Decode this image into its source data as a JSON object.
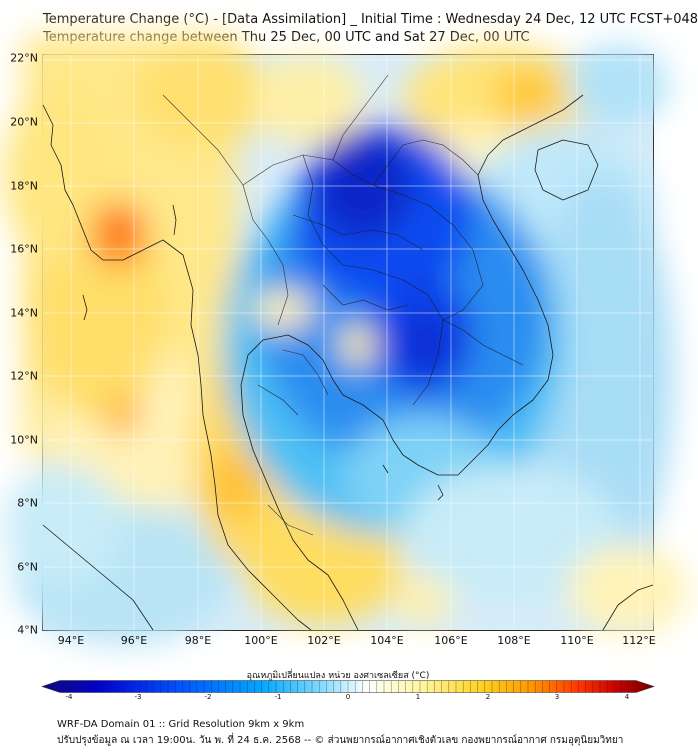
{
  "title": {
    "line1": "Temperature Change (°C) - [Data Assimilation] _ Initial Time : Wednesday 24 Dec, 12 UTC FCST+048",
    "line2": "Temperature change between Thu 25 Dec, 00 UTC and Sat 27 Dec, 00 UTC"
  },
  "axes": {
    "lat_labels": [
      "22°N",
      "20°N",
      "18°N",
      "16°N",
      "14°N",
      "12°N",
      "10°N",
      "8°N",
      "6°N",
      "4°N"
    ],
    "lon_labels": [
      "94°E",
      "96°E",
      "98°E",
      "100°E",
      "102°E",
      "104°E",
      "106°E",
      "108°E",
      "110°E",
      "112°E"
    ],
    "lat_range": [
      4,
      22.3
    ],
    "lon_range": [
      93,
      112.4
    ]
  },
  "colorbar": {
    "title": "อุณหภูมิเปลี่ยนแปลง หน่วย องศาเซลเซียส (°C)",
    "ticks": [
      "-4",
      "-3",
      "-2",
      "-1",
      "0",
      "1",
      "2",
      "3",
      "4"
    ],
    "range": [
      -4,
      4
    ],
    "colors": [
      "#140a78",
      "#0000cd",
      "#0050ff",
      "#00a8ff",
      "#87dcff",
      "#ffffff",
      "#fff5a0",
      "#ffd21e",
      "#ff9600",
      "#ff3200",
      "#c80000",
      "#6e0000"
    ]
  },
  "footer": {
    "line1": "WRF-DA Domain 01 :: Grid Resolution 9km x 9km",
    "line2": "ปรับปรุงข้อมูล ณ เวลา 19:00น. วัน พ. ที่ 24 ธ.ค. 2568 -- © ส่วนพยากรณ์อากาศเชิงตัวเลข กองพยากรณ์อากาศ กรมอุตุนิยมวิทยา"
  }
}
